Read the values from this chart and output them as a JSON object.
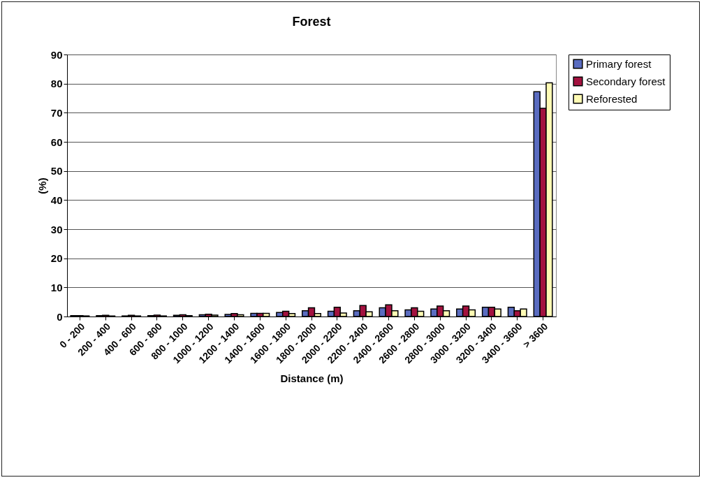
{
  "chart_data": {
    "type": "bar",
    "title": "Forest",
    "xlabel": "Distance (m)",
    "ylabel": "(%)",
    "categories": [
      "0 - 200",
      "200 - 400",
      "400 - 600",
      "600 - 800",
      "800 - 1000",
      "1000 - 1200",
      "1200 - 1400",
      "1400 - 1600",
      "1600 - 1800",
      "1800 - 2000",
      "2000 - 2200",
      "2200 - 2400",
      "2400 - 2600",
      "2600 - 2800",
      "2800 - 3000",
      "3000 - 3200",
      "3200 - 3400",
      "3400 - 3600",
      "> 3600"
    ],
    "series": [
      {
        "name": "Primary forest",
        "color": "#5a6cc0",
        "values": [
          0.3,
          0.3,
          0.2,
          0.3,
          0.4,
          0.6,
          0.7,
          1.1,
          1.4,
          2.0,
          1.8,
          2.0,
          3.0,
          2.3,
          2.6,
          2.6,
          3.2,
          3.2,
          77.2
        ]
      },
      {
        "name": "Secondary forest",
        "color": "#a3123f",
        "values": [
          0.3,
          0.4,
          0.4,
          0.5,
          0.6,
          0.8,
          1.0,
          1.1,
          1.8,
          3.0,
          3.2,
          3.8,
          4.0,
          3.0,
          3.6,
          3.6,
          3.2,
          2.0,
          71.5
        ]
      },
      {
        "name": "Reforested",
        "color": "#fffbb4",
        "values": [
          0.2,
          0.2,
          0.2,
          0.2,
          0.3,
          0.5,
          0.6,
          1.1,
          1.0,
          1.0,
          1.2,
          1.6,
          2.0,
          1.8,
          2.0,
          2.3,
          2.6,
          2.6,
          80.3
        ]
      }
    ],
    "ylim": [
      0,
      90
    ],
    "yticks": [
      0,
      10,
      20,
      30,
      40,
      50,
      60,
      70,
      80,
      90
    ],
    "grid": "y",
    "legend": "right"
  }
}
